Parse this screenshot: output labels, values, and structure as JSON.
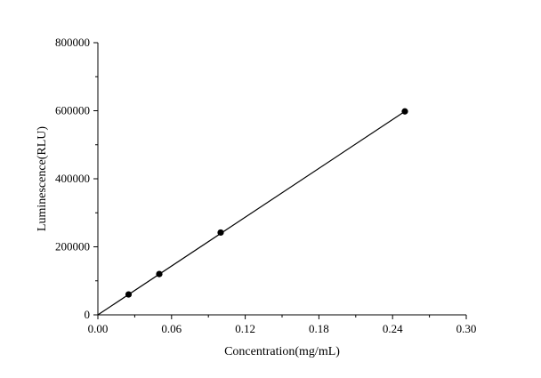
{
  "chart_data": {
    "type": "scatter",
    "title": "",
    "xlabel": "Concentration(mg/mL)",
    "ylabel": "Luminescence(RLU)",
    "xlim": [
      0,
      0.3
    ],
    "ylim": [
      0,
      800000
    ],
    "x_ticks": [
      "0.00",
      "0.06",
      "0.12",
      "0.18",
      "0.24",
      "0.30"
    ],
    "y_ticks": [
      "0",
      "200000",
      "400000",
      "600000",
      "800000"
    ],
    "grid": false,
    "legend": "none",
    "series": [
      {
        "x": [
          0.025,
          0.05,
          0.1,
          0.25
        ],
        "y": [
          60000,
          120000,
          242000,
          598000
        ],
        "marker": "circle",
        "color": "#000000"
      }
    ],
    "fit_line": {
      "x": [
        0,
        0.25
      ],
      "y": [
        0,
        598000
      ],
      "color": "#000000"
    }
  }
}
